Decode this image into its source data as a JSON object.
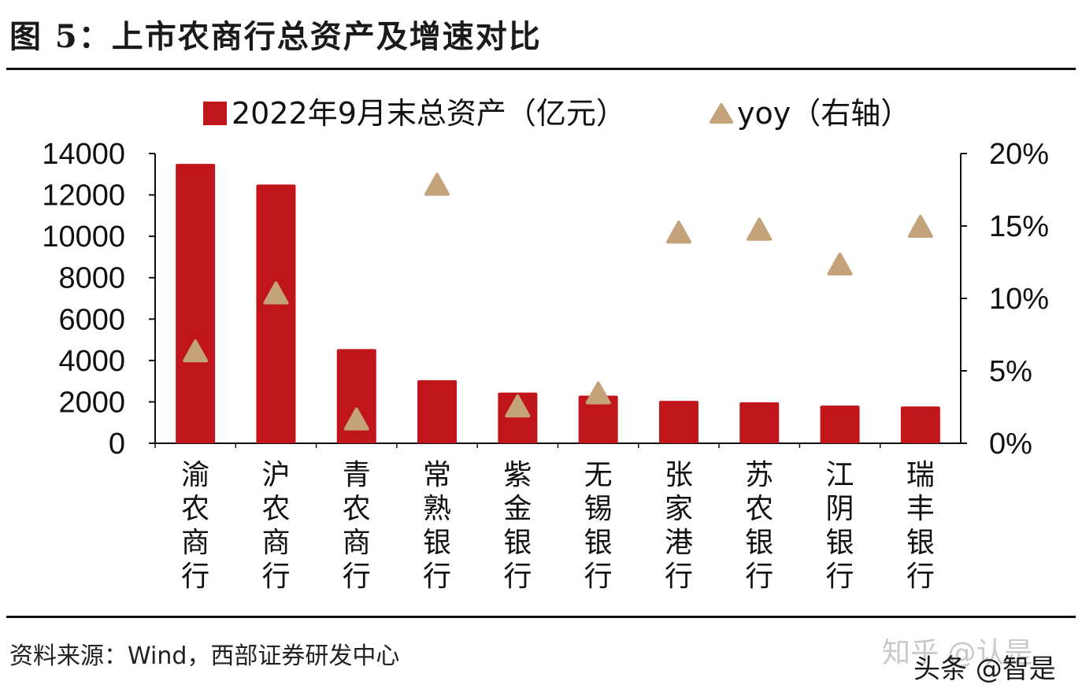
{
  "title": "图 5：上市农商行总资产及增速对比",
  "source": "资料来源：Wind，西部证券研发中心",
  "watermarks": {
    "zhihu": "知乎 @认是",
    "toutiao": "头条 @智是"
  },
  "colors": {
    "bar": "#c0151b",
    "marker": "#c4a27a",
    "axis": "#111111"
  },
  "chart_data": {
    "type": "bar",
    "categories": [
      "渝农商行",
      "沪农商行",
      "青农商行",
      "常熟银行",
      "紫金银行",
      "无锡银行",
      "张家港行",
      "苏农银行",
      "江阴银行",
      "瑞丰银行"
    ],
    "series": [
      {
        "name": "2022年9月末总资产（亿元）",
        "type": "bar",
        "axis": "left",
        "values": [
          13500,
          12500,
          4550,
          3050,
          2450,
          2300,
          2050,
          1980,
          1820,
          1780
        ]
      },
      {
        "name": "yoy（右轴）",
        "type": "scatter",
        "marker": "triangle",
        "axis": "right",
        "values": [
          6.3,
          10.3,
          1.6,
          17.8,
          2.5,
          3.4,
          14.5,
          14.7,
          12.3,
          14.9
        ]
      }
    ],
    "y_left": {
      "min": 0,
      "max": 14000,
      "ticks": [
        "0",
        "2000",
        "4000",
        "6000",
        "8000",
        "10000",
        "12000",
        "14000"
      ]
    },
    "y_right": {
      "min": 0,
      "max": 20,
      "ticks": [
        "0%",
        "5%",
        "10%",
        "15%",
        "20%"
      ]
    },
    "legend": {
      "position": "top",
      "labels": [
        "2022年9月末总资产（亿元）",
        "yoy（右轴）"
      ]
    }
  }
}
